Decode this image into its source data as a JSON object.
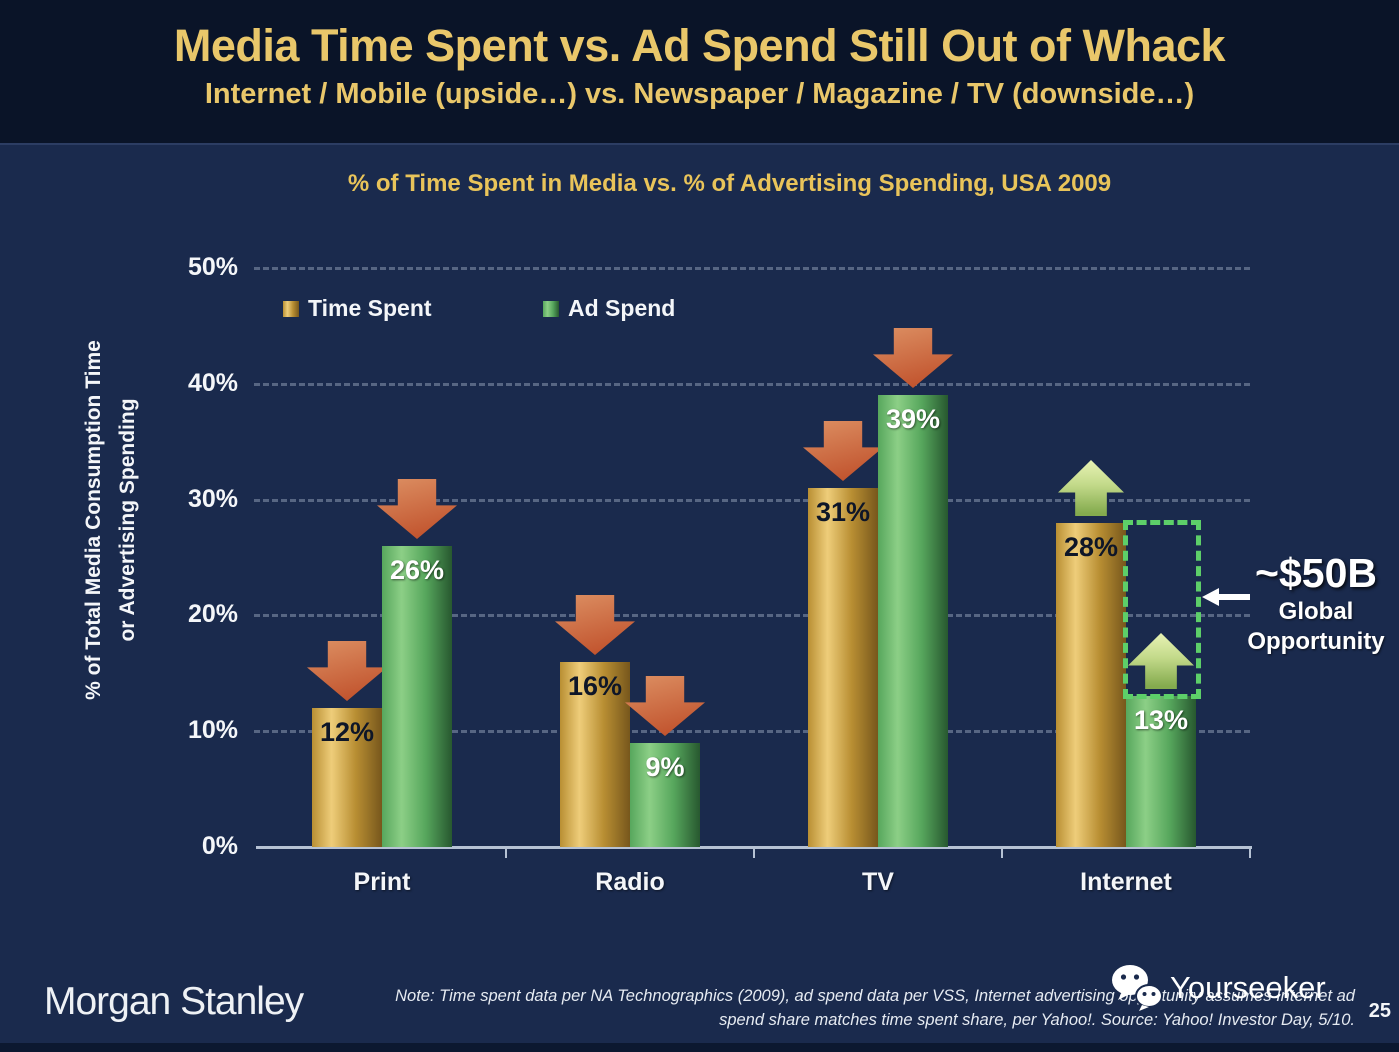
{
  "slide": {
    "title": "Media Time Spent vs. Ad Spend Still Out of Whack",
    "subtitle": "Internet / Mobile (upside…) vs. Newspaper / Magazine / TV (downside…)"
  },
  "chart_data": {
    "type": "bar",
    "title": "% of Time Spent in Media vs. % of Advertising Spending, USA 2009",
    "categories": [
      "Print",
      "Radio",
      "TV",
      "Internet"
    ],
    "series": [
      {
        "name": "Time Spent",
        "values": [
          12,
          16,
          31,
          28
        ],
        "color_start": "#b98f33",
        "color_mid": "#eecd7a",
        "color_end": "#77571c",
        "label_color": "#0e1628"
      },
      {
        "name": "Ad Spend",
        "values": [
          26,
          9,
          39,
          13
        ],
        "color_start": "#57a75d",
        "color_mid": "#8ccf86",
        "color_end": "#27582f",
        "label_color": "#ffffff"
      }
    ],
    "value_suffix": "%",
    "ylim": [
      0,
      50
    ],
    "ytick_labels": [
      "0%",
      "10%",
      "20%",
      "30%",
      "40%",
      "50%"
    ],
    "ylabel_lines": [
      "% of Total Media Consumption Time",
      "or Advertising Spending"
    ],
    "grid": "horizontal-dashed",
    "legend_position": "top-left-inside",
    "trend_arrows": [
      [
        "down",
        "down"
      ],
      [
        "down",
        "down"
      ],
      [
        "down",
        "down"
      ],
      [
        "up",
        "up"
      ]
    ],
    "annotation": {
      "category": "Internet",
      "series": "Ad Spend",
      "box_from": 13,
      "box_to": 28,
      "value": "~$50B",
      "caption_lines": [
        "Global",
        "Opportunity"
      ]
    }
  },
  "colors": {
    "background": "#1a2a4d",
    "header_background": "#0a1428",
    "accent_gold": "#e9c76a",
    "chart_title_gold": "#e9c45a",
    "down_arrow": "#c2552f",
    "up_arrow": "#a9c873",
    "opportunity_box": "#5dcf69"
  },
  "footer": {
    "logo": "Morgan Stanley",
    "note_line1": "Note: Time spent data per NA Technographics (2009), ad spend data per VSS, Internet advertising opportunity assumes Internet ad",
    "note_line2": "spend share matches time spent share, per Yahoo!. Source: Yahoo! Investor Day, 5/10.",
    "brand": "Yourseeker",
    "page_number": "25"
  }
}
